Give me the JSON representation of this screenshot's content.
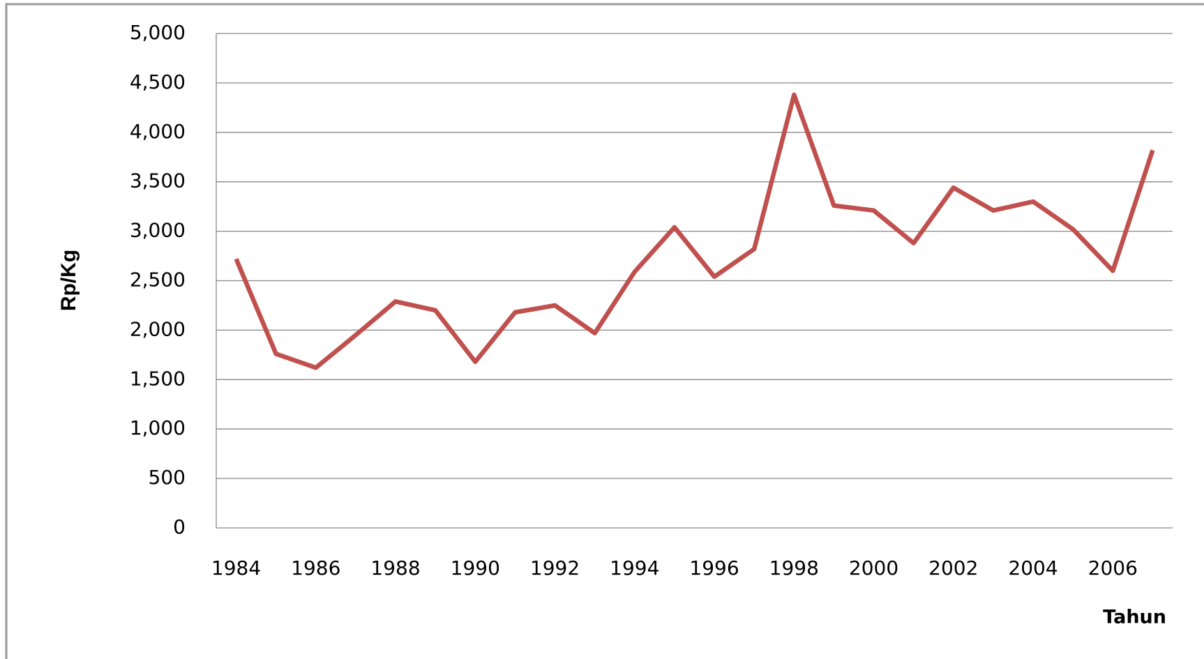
{
  "chart_data": {
    "type": "line",
    "categories": [
      "1984",
      null,
      "1986",
      null,
      "1988",
      null,
      "1990",
      null,
      "1992",
      null,
      "1994",
      null,
      "1996",
      null,
      "1998",
      null,
      "2000",
      null,
      "2002",
      null,
      "2004",
      null,
      "2006",
      null
    ],
    "series": [
      {
        "color": "#c0504d",
        "values": [
          2720,
          1760,
          1620,
          1950,
          2290,
          2200,
          1680,
          2180,
          2250,
          1970,
          2590,
          3040,
          2540,
          2820,
          4380,
          3260,
          3210,
          2880,
          3440,
          3210,
          3300,
          3020,
          2600,
          3820
        ]
      }
    ],
    "ylim": [
      0,
      5000
    ],
    "yticks": [
      0,
      500,
      {
        "value": 1000,
        "label": "1,000"
      },
      {
        "value": 1500,
        "label": "1,500"
      },
      {
        "value": 2000,
        "label": "2,000"
      },
      {
        "value": 2500,
        "label": "2,500"
      },
      {
        "value": 3000,
        "label": "3,000"
      },
      {
        "value": 3500,
        "label": "3,500"
      },
      {
        "value": 4000,
        "label": "4,000"
      },
      {
        "value": 4500,
        "label": "4,500"
      },
      {
        "value": 5000,
        "label": "5,000"
      }
    ],
    "y_label": "Rp/Kg",
    "x_label": "Tahun",
    "grid": true
  }
}
